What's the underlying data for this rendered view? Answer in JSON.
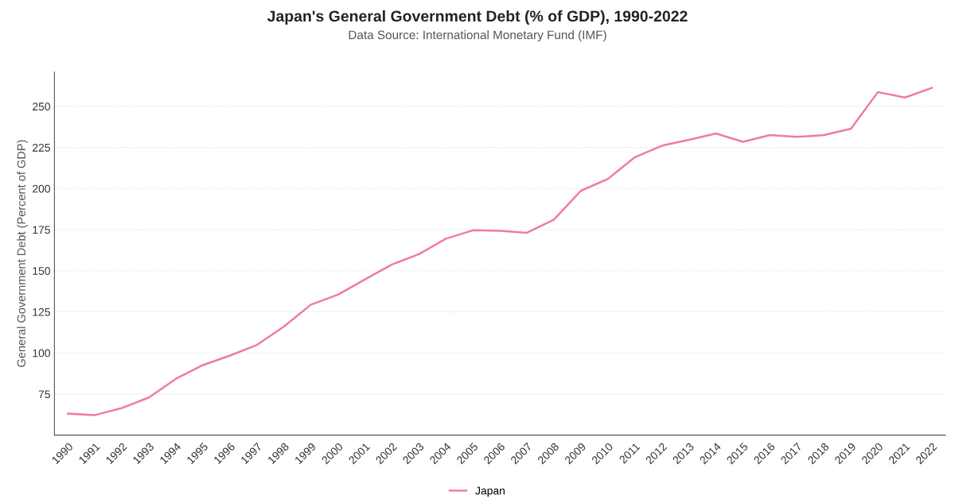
{
  "chart_data": {
    "type": "line",
    "title": "Japan's General Government Debt (% of GDP), 1990-2022",
    "subtitle": "Data Source: International Monetary Fund (IMF)",
    "ylabel": "General Government Debt (Percent of GDP)",
    "categories": [
      "1990",
      "1991",
      "1992",
      "1993",
      "1994",
      "1995",
      "1996",
      "1997",
      "1998",
      "1999",
      "2000",
      "2001",
      "2002",
      "2003",
      "2004",
      "2005",
      "2006",
      "2007",
      "2008",
      "2009",
      "2010",
      "2011",
      "2012",
      "2013",
      "2014",
      "2015",
      "2016",
      "2017",
      "2018",
      "2019",
      "2020",
      "2021",
      "2022"
    ],
    "series": [
      {
        "name": "Japan",
        "color": "#f07aa6",
        "values": [
          63.1,
          62.2,
          66.5,
          72.9,
          84.3,
          92.6,
          98.4,
          104.9,
          116.0,
          129.4,
          135.4,
          144.7,
          153.8,
          160.1,
          169.5,
          174.6,
          174.3,
          173.1,
          181.1,
          198.7,
          205.9,
          219.1,
          226.1,
          229.6,
          233.5,
          228.4,
          232.5,
          231.4,
          232.5,
          236.4,
          258.7,
          255.4,
          261.3
        ]
      }
    ],
    "ylim": [
      50,
      271
    ],
    "yticks": [
      75,
      100,
      125,
      150,
      175,
      200,
      225,
      250
    ],
    "grid": "y",
    "legend": "bottom",
    "marker": "none",
    "line_style": "solid"
  }
}
